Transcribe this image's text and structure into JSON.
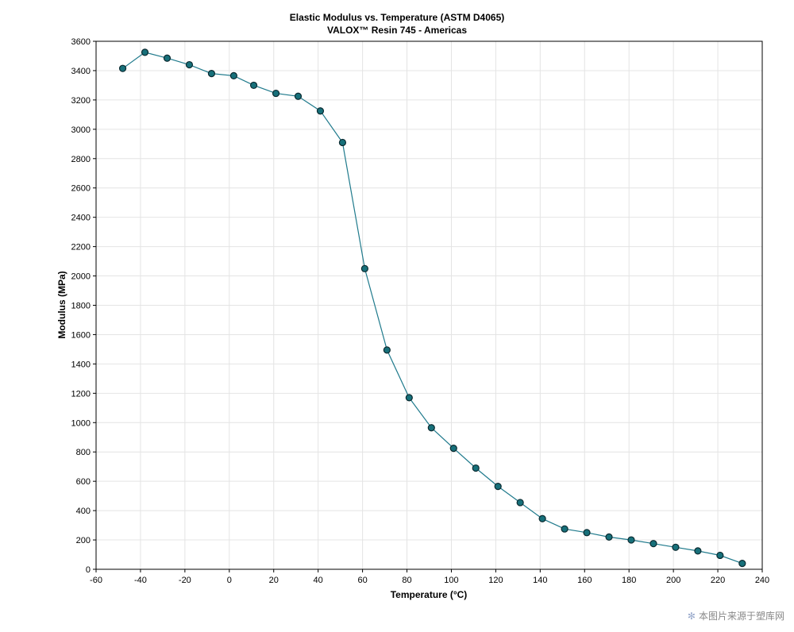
{
  "watermark": {
    "text": "本图片来源于塑库网",
    "icon": "asterisk-icon"
  },
  "chart_data": {
    "type": "line",
    "title": "Elastic Modulus vs. Temperature (ASTM D4065)",
    "subtitle": "VALOX™ Resin 745 - Americas",
    "xlabel": "Temperature (°C)",
    "ylabel": "Modulus (MPa)",
    "xlim": [
      -60,
      240
    ],
    "ylim": [
      0,
      3600
    ],
    "xticks": [
      -60,
      -40,
      -20,
      0,
      20,
      40,
      60,
      80,
      100,
      120,
      140,
      160,
      180,
      200,
      220,
      240
    ],
    "yticks": [
      0,
      200,
      400,
      600,
      800,
      1000,
      1200,
      1400,
      1600,
      1800,
      2000,
      2200,
      2400,
      2600,
      2800,
      3000,
      3200,
      3400,
      3600
    ],
    "grid": true,
    "legend": "none",
    "colors": {
      "line": "#1f7a8c",
      "marker": "#17707a"
    },
    "series": [
      {
        "x": [
          -48,
          -38,
          -28,
          -18,
          -8,
          2,
          11,
          21,
          31,
          41,
          51,
          61,
          71,
          81,
          91,
          101,
          111,
          121,
          131,
          141,
          151,
          161,
          171,
          181,
          191,
          201,
          211,
          221,
          231
        ],
        "y": [
          3415,
          3525,
          3485,
          3440,
          3380,
          3365,
          3300,
          3245,
          3225,
          3125,
          2910,
          2050,
          1495,
          1170,
          965,
          825,
          690,
          565,
          455,
          345,
          275,
          250,
          220,
          200,
          175,
          150,
          125,
          95,
          40
        ]
      }
    ]
  }
}
